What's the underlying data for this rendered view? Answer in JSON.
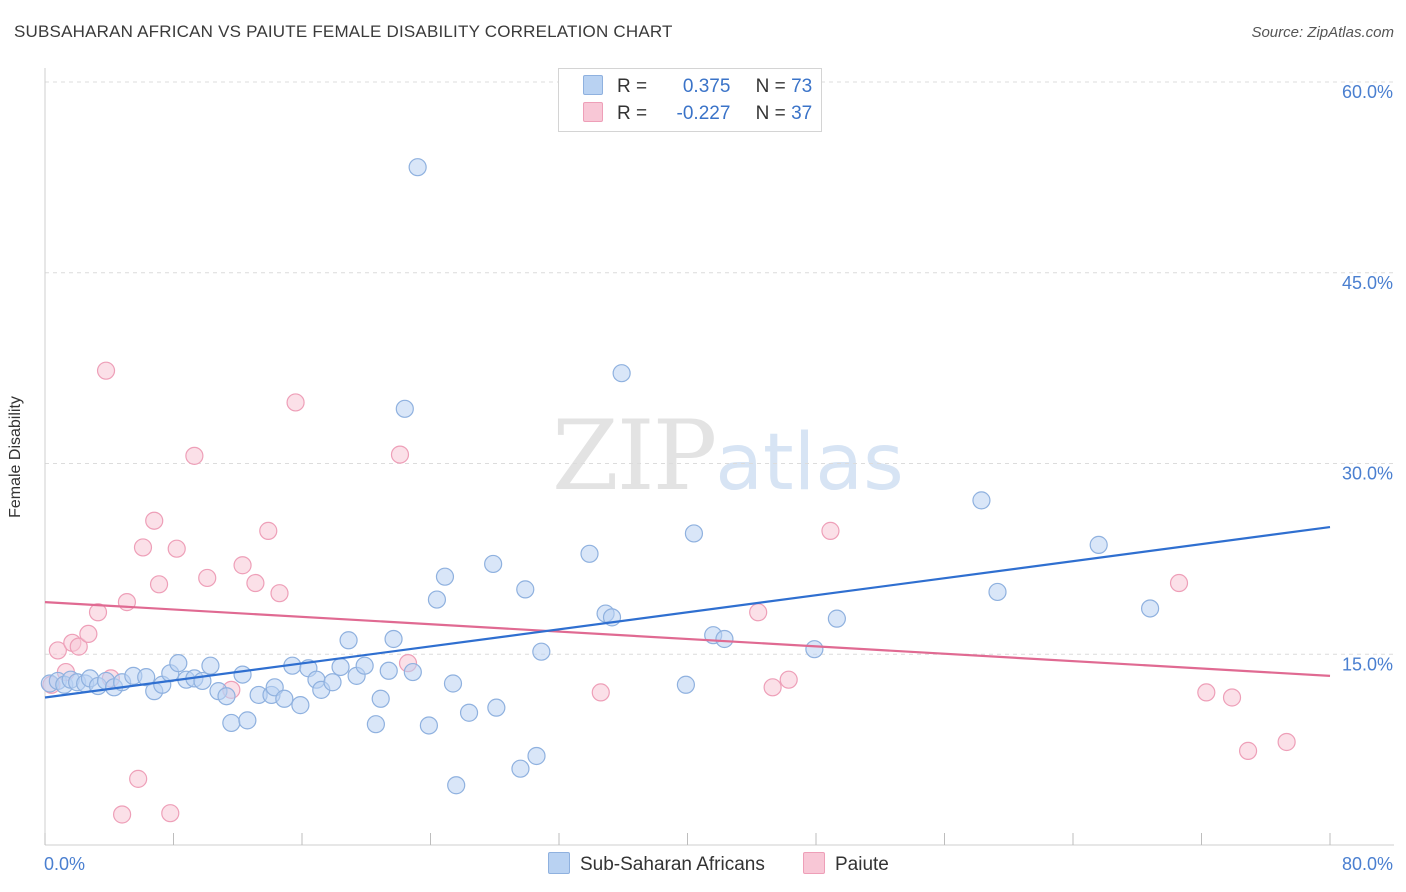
{
  "header": {
    "title": "SUBSAHARAN AFRICAN VS PAIUTE FEMALE DISABILITY CORRELATION CHART",
    "source": "Source: ZipAtlas.com"
  },
  "watermark": {
    "zip": "ZIP",
    "atlas": "atlas"
  },
  "legend": {
    "blue": {
      "r_label": "R =",
      "r_value": "0.375",
      "n_label": "N =",
      "n_value": "73"
    },
    "pink": {
      "r_label": "R =",
      "r_value": "-0.227",
      "n_label": "N =",
      "n_value": "37"
    }
  },
  "bottom_legend": {
    "blue_label": "Sub-Saharan Africans",
    "pink_label": "Paiute"
  },
  "colors": {
    "blue_fill": "#b9d2f2",
    "blue_stroke": "#8fb1df",
    "blue_line": "#2f6fd0",
    "pink_fill": "#f8c7d6",
    "pink_stroke": "#ee9fb8",
    "pink_line": "#e06a92",
    "tick": "#4a7fd0",
    "grid": "#dcdcdc"
  },
  "chart_data": {
    "type": "scatter",
    "title": "SUBSAHARAN AFRICAN VS PAIUTE FEMALE DISABILITY CORRELATION CHART",
    "xlabel": "",
    "ylabel": "Female Disability",
    "xlim": [
      0,
      80
    ],
    "ylim": [
      0,
      60
    ],
    "x_tick_labels": [
      "0.0%",
      "80.0%"
    ],
    "y_ticks": [
      15,
      30,
      45,
      60
    ],
    "y_tick_labels": [
      "15.0%",
      "30.0%",
      "45.0%",
      "60.0%"
    ],
    "grid": true,
    "legend_position": "top-center",
    "series": [
      {
        "name": "Sub-Saharan Africans",
        "r": 0.375,
        "n": 73,
        "trend": [
          [
            0,
            11.6
          ],
          [
            80,
            25.0
          ]
        ],
        "points": [
          [
            0.3,
            12.7
          ],
          [
            0.8,
            12.9
          ],
          [
            1.2,
            12.6
          ],
          [
            1.6,
            13.0
          ],
          [
            2.0,
            12.8
          ],
          [
            2.5,
            12.7
          ],
          [
            2.8,
            13.1
          ],
          [
            3.3,
            12.5
          ],
          [
            3.8,
            12.9
          ],
          [
            4.3,
            12.4
          ],
          [
            4.8,
            12.8
          ],
          [
            5.5,
            13.3
          ],
          [
            6.3,
            13.2
          ],
          [
            6.8,
            12.1
          ],
          [
            7.3,
            12.6
          ],
          [
            7.8,
            13.5
          ],
          [
            8.3,
            14.3
          ],
          [
            8.8,
            13.0
          ],
          [
            9.3,
            13.1
          ],
          [
            9.8,
            12.9
          ],
          [
            10.3,
            14.1
          ],
          [
            10.8,
            12.1
          ],
          [
            11.3,
            11.7
          ],
          [
            11.6,
            9.6
          ],
          [
            12.3,
            13.4
          ],
          [
            12.6,
            9.8
          ],
          [
            13.3,
            11.8
          ],
          [
            14.1,
            11.8
          ],
          [
            14.3,
            12.4
          ],
          [
            14.9,
            11.5
          ],
          [
            15.4,
            14.1
          ],
          [
            15.9,
            11.0
          ],
          [
            16.4,
            13.9
          ],
          [
            16.9,
            13.0
          ],
          [
            17.2,
            12.2
          ],
          [
            17.9,
            12.8
          ],
          [
            18.4,
            14.0
          ],
          [
            18.9,
            16.1
          ],
          [
            19.4,
            13.3
          ],
          [
            19.9,
            14.1
          ],
          [
            20.6,
            9.5
          ],
          [
            20.9,
            11.5
          ],
          [
            21.4,
            13.7
          ],
          [
            21.7,
            16.2
          ],
          [
            22.4,
            34.3
          ],
          [
            22.9,
            13.6
          ],
          [
            23.2,
            53.3
          ],
          [
            23.9,
            9.4
          ],
          [
            24.4,
            19.3
          ],
          [
            24.9,
            21.1
          ],
          [
            25.4,
            12.7
          ],
          [
            25.6,
            4.7
          ],
          [
            26.4,
            10.4
          ],
          [
            27.9,
            22.1
          ],
          [
            28.1,
            10.8
          ],
          [
            29.6,
            6.0
          ],
          [
            29.9,
            20.1
          ],
          [
            30.6,
            7.0
          ],
          [
            30.9,
            15.2
          ],
          [
            33.9,
            22.9
          ],
          [
            34.9,
            18.2
          ],
          [
            35.3,
            17.9
          ],
          [
            35.9,
            37.1
          ],
          [
            39.9,
            12.6
          ],
          [
            40.4,
            24.5
          ],
          [
            41.6,
            16.5
          ],
          [
            42.3,
            16.2
          ],
          [
            47.9,
            15.4
          ],
          [
            49.3,
            17.8
          ],
          [
            58.3,
            27.1
          ],
          [
            59.3,
            19.9
          ],
          [
            65.6,
            23.6
          ],
          [
            68.8,
            18.6
          ]
        ]
      },
      {
        "name": "Paiute",
        "r": -0.227,
        "n": 37,
        "trend": [
          [
            0,
            19.1
          ],
          [
            80,
            13.3
          ]
        ],
        "points": [
          [
            0.4,
            12.6
          ],
          [
            0.8,
            15.3
          ],
          [
            1.3,
            13.6
          ],
          [
            1.7,
            15.9
          ],
          [
            2.1,
            15.6
          ],
          [
            2.7,
            16.6
          ],
          [
            3.3,
            18.3
          ],
          [
            3.8,
            37.3
          ],
          [
            4.1,
            13.1
          ],
          [
            4.8,
            2.4
          ],
          [
            5.1,
            19.1
          ],
          [
            5.8,
            5.2
          ],
          [
            6.1,
            23.4
          ],
          [
            6.8,
            25.5
          ],
          [
            7.1,
            20.5
          ],
          [
            7.8,
            2.5
          ],
          [
            8.2,
            23.3
          ],
          [
            9.3,
            30.6
          ],
          [
            10.1,
            21.0
          ],
          [
            11.6,
            12.2
          ],
          [
            12.3,
            22.0
          ],
          [
            13.1,
            20.6
          ],
          [
            13.9,
            24.7
          ],
          [
            14.6,
            19.8
          ],
          [
            15.6,
            34.8
          ],
          [
            22.1,
            30.7
          ],
          [
            22.6,
            14.3
          ],
          [
            34.6,
            12.0
          ],
          [
            44.4,
            18.3
          ],
          [
            45.3,
            12.4
          ],
          [
            46.3,
            13.0
          ],
          [
            48.9,
            24.7
          ],
          [
            70.6,
            20.6
          ],
          [
            72.3,
            12.0
          ],
          [
            73.9,
            11.6
          ],
          [
            74.9,
            7.4
          ],
          [
            77.3,
            8.1
          ]
        ]
      }
    ]
  }
}
